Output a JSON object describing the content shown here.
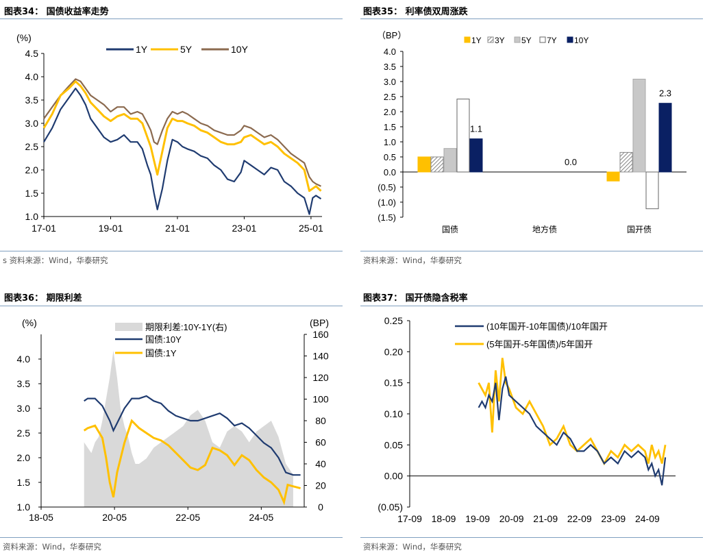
{
  "colors": {
    "navy": "#1f3b70",
    "gold": "#ffc000",
    "brown": "#8b6a4f",
    "grey": "#d9d9d9",
    "darknavy": "#0a2063",
    "silver": "#c8c8c8",
    "yellow2": "#ffc000"
  },
  "panels": {
    "p34": {
      "title": "图表34：  国债收益率走势",
      "source": "s 资料来源：Wind，华泰研究"
    },
    "p35": {
      "title": "图表35：  利率债双周涨跌",
      "source": "资料来源：Wind，华泰研究"
    },
    "p36": {
      "title": "图表36：  期限利差",
      "source": "资料来源：Wind，华泰研究"
    },
    "p37": {
      "title": "图表37：  国开债隐含税率",
      "source": "资料来源：Wind，华泰研究"
    }
  },
  "chart_data": [
    {
      "id": "yields",
      "type": "line",
      "ylabel": "(%)",
      "ylim": [
        1.0,
        4.5
      ],
      "yticks": [
        "1.0",
        "1.5",
        "2.0",
        "2.5",
        "3.0",
        "3.5",
        "4.0",
        "4.5"
      ],
      "xticks": [
        "17-01",
        "19-01",
        "21-01",
        "23-01",
        "25-01"
      ],
      "xrange": [
        2017.0,
        2025.33
      ],
      "legend": [
        "1Y",
        "5Y",
        "10Y"
      ],
      "series": [
        {
          "name": "1Y",
          "x": [
            2017.0,
            2017.25,
            2017.5,
            2017.75,
            2017.95,
            2018.1,
            2018.25,
            2018.4,
            2018.6,
            2018.8,
            2019.0,
            2019.2,
            2019.4,
            2019.6,
            2019.8,
            2019.95,
            2020.1,
            2020.2,
            2020.3,
            2020.4,
            2020.55,
            2020.7,
            2020.85,
            2021.0,
            2021.15,
            2021.3,
            2021.5,
            2021.7,
            2021.9,
            2022.1,
            2022.3,
            2022.5,
            2022.7,
            2022.9,
            2023.0,
            2023.2,
            2023.4,
            2023.6,
            2023.8,
            2024.0,
            2024.2,
            2024.4,
            2024.6,
            2024.8,
            2024.95,
            2025.05,
            2025.15,
            2025.3
          ],
          "values": [
            2.6,
            2.9,
            3.3,
            3.55,
            3.75,
            3.6,
            3.4,
            3.1,
            2.9,
            2.7,
            2.6,
            2.65,
            2.75,
            2.6,
            2.6,
            2.45,
            2.1,
            1.9,
            1.5,
            1.15,
            1.6,
            2.2,
            2.65,
            2.6,
            2.5,
            2.45,
            2.4,
            2.3,
            2.25,
            2.1,
            2.0,
            1.8,
            1.75,
            1.95,
            2.2,
            2.1,
            2.0,
            1.9,
            2.05,
            2.0,
            1.75,
            1.65,
            1.5,
            1.4,
            1.05,
            1.4,
            1.45,
            1.38
          ]
        },
        {
          "name": "5Y",
          "x": [
            2017.0,
            2017.25,
            2017.5,
            2017.75,
            2017.95,
            2018.1,
            2018.25,
            2018.4,
            2018.6,
            2018.8,
            2019.0,
            2019.2,
            2019.4,
            2019.6,
            2019.8,
            2019.95,
            2020.1,
            2020.2,
            2020.3,
            2020.4,
            2020.55,
            2020.7,
            2020.85,
            2021.0,
            2021.15,
            2021.3,
            2021.5,
            2021.7,
            2021.9,
            2022.1,
            2022.3,
            2022.5,
            2022.7,
            2022.9,
            2023.0,
            2023.2,
            2023.4,
            2023.6,
            2023.8,
            2024.0,
            2024.2,
            2024.4,
            2024.6,
            2024.8,
            2024.95,
            2025.05,
            2025.15,
            2025.3
          ],
          "values": [
            2.9,
            3.2,
            3.6,
            3.75,
            3.9,
            3.8,
            3.65,
            3.45,
            3.3,
            3.15,
            3.05,
            3.15,
            3.2,
            3.1,
            3.1,
            3.0,
            2.7,
            2.5,
            2.2,
            1.9,
            2.4,
            2.9,
            3.1,
            3.05,
            3.05,
            3.0,
            2.95,
            2.85,
            2.8,
            2.7,
            2.6,
            2.55,
            2.55,
            2.6,
            2.7,
            2.75,
            2.65,
            2.55,
            2.6,
            2.5,
            2.35,
            2.25,
            2.15,
            2.0,
            1.55,
            1.6,
            1.65,
            1.55
          ]
        },
        {
          "name": "10Y",
          "x": [
            2017.0,
            2017.25,
            2017.5,
            2017.75,
            2017.95,
            2018.1,
            2018.25,
            2018.4,
            2018.6,
            2018.8,
            2019.0,
            2019.2,
            2019.4,
            2019.6,
            2019.8,
            2019.95,
            2020.1,
            2020.2,
            2020.3,
            2020.4,
            2020.55,
            2020.7,
            2020.85,
            2021.0,
            2021.15,
            2021.3,
            2021.5,
            2021.7,
            2021.9,
            2022.1,
            2022.3,
            2022.5,
            2022.7,
            2022.9,
            2023.0,
            2023.2,
            2023.4,
            2023.6,
            2023.8,
            2024.0,
            2024.2,
            2024.4,
            2024.6,
            2024.8,
            2024.95,
            2025.05,
            2025.15,
            2025.3
          ],
          "values": [
            3.1,
            3.35,
            3.6,
            3.8,
            3.95,
            3.9,
            3.75,
            3.6,
            3.5,
            3.4,
            3.25,
            3.35,
            3.35,
            3.2,
            3.25,
            3.2,
            3.0,
            2.85,
            2.6,
            2.55,
            2.85,
            3.1,
            3.25,
            3.2,
            3.25,
            3.2,
            3.1,
            3.0,
            2.95,
            2.85,
            2.8,
            2.75,
            2.75,
            2.85,
            2.95,
            2.9,
            2.8,
            2.7,
            2.75,
            2.65,
            2.5,
            2.35,
            2.25,
            2.15,
            1.85,
            1.75,
            1.7,
            1.65
          ]
        }
      ]
    },
    {
      "id": "biweekly",
      "type": "bar",
      "ylabel": "（BP）",
      "ylim": [
        -1.5,
        4.0
      ],
      "yticks": [
        "(1.5)",
        "(1.0)",
        "(0.5)",
        "0.0",
        "0.5",
        "1.0",
        "1.5",
        "2.0",
        "2.5",
        "3.0",
        "3.5",
        "4.0"
      ],
      "categories": [
        "国债",
        "地方债",
        "国开债"
      ],
      "legend": [
        "1Y",
        "3Y",
        "5Y",
        "7Y",
        "10Y"
      ],
      "series": [
        {
          "name": "1Y",
          "values": [
            0.5,
            0.0,
            -0.3
          ]
        },
        {
          "name": "3Y",
          "values": [
            0.5,
            0.0,
            0.65
          ]
        },
        {
          "name": "5Y",
          "values": [
            0.78,
            0.0,
            3.08
          ]
        },
        {
          "name": "7Y",
          "values": [
            2.42,
            0.0,
            -1.22
          ]
        },
        {
          "name": "10Y",
          "values": [
            1.1,
            0.0,
            2.28
          ]
        }
      ],
      "data_labels": [
        "1.1",
        "0.0",
        "2.3"
      ]
    },
    {
      "id": "spread",
      "type": "line",
      "ylabel": "(%)",
      "ylabel_right": "(BP)",
      "ylim": [
        1.0,
        4.5
      ],
      "ylim_right": [
        0,
        160
      ],
      "yticks": [
        "1.0",
        "1.5",
        "2.0",
        "2.5",
        "3.0",
        "3.5",
        "4.0"
      ],
      "yticks_right": [
        "0",
        "20",
        "40",
        "60",
        "80",
        "100",
        "120",
        "140",
        "160"
      ],
      "xticks": [
        "18-05",
        "20-05",
        "22-05",
        "24-05"
      ],
      "xrange": [
        2018.33,
        2025.5
      ],
      "legend": [
        "期限利差:10Y-1Y(右)",
        "国债:10Y",
        "国债:1Y"
      ],
      "series": [
        {
          "name": "期限利差:10Y-1Y(右)",
          "x": [
            2019.5,
            2019.6,
            2019.7,
            2019.8,
            2019.9,
            2020.0,
            2020.1,
            2020.2,
            2020.3,
            2020.4,
            2020.5,
            2020.6,
            2020.7,
            2020.8,
            2020.9,
            2021.0,
            2021.2,
            2021.4,
            2021.6,
            2021.8,
            2022.0,
            2022.2,
            2022.4,
            2022.6,
            2022.8,
            2023.0,
            2023.2,
            2023.4,
            2023.6,
            2023.8,
            2024.0,
            2024.2,
            2024.4,
            2024.6,
            2024.8,
            2025.0,
            2025.2
          ],
          "values": [
            60,
            55,
            50,
            60,
            65,
            80,
            100,
            120,
            145,
            120,
            90,
            75,
            65,
            50,
            40,
            40,
            45,
            55,
            60,
            65,
            70,
            75,
            85,
            90,
            80,
            60,
            55,
            70,
            75,
            70,
            60,
            70,
            75,
            80,
            65,
            40,
            30
          ]
        },
        {
          "name": "国债:10Y",
          "x": [
            2019.5,
            2019.6,
            2019.8,
            2020.0,
            2020.2,
            2020.3,
            2020.4,
            2020.6,
            2020.8,
            2021.0,
            2021.2,
            2021.4,
            2021.6,
            2021.8,
            2022.0,
            2022.2,
            2022.4,
            2022.6,
            2022.8,
            2023.0,
            2023.2,
            2023.4,
            2023.6,
            2023.8,
            2024.0,
            2024.2,
            2024.4,
            2024.6,
            2024.8,
            2025.0,
            2025.2,
            2025.4
          ],
          "values": [
            3.15,
            3.2,
            3.2,
            3.05,
            2.75,
            2.55,
            2.7,
            3.0,
            3.2,
            3.2,
            3.25,
            3.15,
            3.1,
            2.95,
            2.85,
            2.8,
            2.75,
            2.75,
            2.8,
            2.85,
            2.9,
            2.8,
            2.65,
            2.7,
            2.6,
            2.45,
            2.3,
            2.2,
            2.0,
            1.7,
            1.65,
            1.65
          ]
        },
        {
          "name": "国债:1Y",
          "x": [
            2019.5,
            2019.6,
            2019.8,
            2020.0,
            2020.1,
            2020.2,
            2020.3,
            2020.4,
            2020.6,
            2020.8,
            2021.0,
            2021.2,
            2021.4,
            2021.6,
            2021.8,
            2022.0,
            2022.2,
            2022.4,
            2022.6,
            2022.8,
            2023.0,
            2023.2,
            2023.4,
            2023.6,
            2023.8,
            2024.0,
            2024.2,
            2024.4,
            2024.6,
            2024.8,
            2024.95,
            2025.05,
            2025.2,
            2025.4
          ],
          "values": [
            2.55,
            2.6,
            2.65,
            2.4,
            2.0,
            1.5,
            1.2,
            1.7,
            2.3,
            2.75,
            2.6,
            2.5,
            2.4,
            2.35,
            2.25,
            2.1,
            1.95,
            1.8,
            1.75,
            1.85,
            2.2,
            2.15,
            2.05,
            1.85,
            2.05,
            1.95,
            1.75,
            1.6,
            1.5,
            1.35,
            1.1,
            1.45,
            1.42,
            1.38
          ]
        }
      ]
    },
    {
      "id": "taxrate",
      "type": "line",
      "ylim": [
        -0.05,
        0.25
      ],
      "yticks": [
        "(0.05)",
        "0.00",
        "0.05",
        "0.10",
        "0.15",
        "0.20",
        "0.25"
      ],
      "xticks": [
        "17-09",
        "18-09",
        "19-09",
        "20-09",
        "21-09",
        "22-09",
        "23-09",
        "24-09"
      ],
      "xrange": [
        2017.67,
        2025.5
      ],
      "legend": [
        "(10年国开-10年国债)/10年国开",
        "(5年国开-5年国债)/5年国开"
      ],
      "series": [
        {
          "name": "(10年国开-10年国债)/10年国开",
          "x": [
            2019.7,
            2019.8,
            2019.9,
            2020.0,
            2020.1,
            2020.2,
            2020.3,
            2020.4,
            2020.5,
            2020.6,
            2020.8,
            2021.0,
            2021.2,
            2021.4,
            2021.6,
            2021.8,
            2022.0,
            2022.2,
            2022.4,
            2022.6,
            2022.8,
            2023.0,
            2023.2,
            2023.4,
            2023.6,
            2023.8,
            2024.0,
            2024.2,
            2024.4,
            2024.6,
            2024.7,
            2024.8,
            2024.9,
            2025.0,
            2025.1,
            2025.2
          ],
          "values": [
            0.11,
            0.12,
            0.11,
            0.13,
            0.12,
            0.15,
            0.09,
            0.14,
            0.16,
            0.13,
            0.12,
            0.11,
            0.1,
            0.08,
            0.07,
            0.06,
            0.05,
            0.07,
            0.06,
            0.04,
            0.04,
            0.05,
            0.04,
            0.02,
            0.03,
            0.02,
            0.04,
            0.03,
            0.04,
            0.03,
            0.01,
            0.02,
            0.0,
            0.01,
            -0.015,
            0.03
          ]
        },
        {
          "name": "(5年国开-5年国债)/5年国开",
          "x": [
            2019.7,
            2019.8,
            2019.9,
            2020.0,
            2020.1,
            2020.2,
            2020.3,
            2020.4,
            2020.5,
            2020.6,
            2020.8,
            2021.0,
            2021.2,
            2021.4,
            2021.6,
            2021.8,
            2022.0,
            2022.2,
            2022.4,
            2022.6,
            2022.8,
            2023.0,
            2023.2,
            2023.4,
            2023.6,
            2023.8,
            2024.0,
            2024.2,
            2024.4,
            2024.6,
            2024.7,
            2024.8,
            2024.9,
            2025.0,
            2025.1,
            2025.2
          ],
          "values": [
            0.15,
            0.14,
            0.13,
            0.15,
            0.07,
            0.17,
            0.12,
            0.19,
            0.15,
            0.14,
            0.11,
            0.1,
            0.12,
            0.1,
            0.08,
            0.05,
            0.06,
            0.08,
            0.05,
            0.04,
            0.05,
            0.06,
            0.04,
            0.02,
            0.04,
            0.03,
            0.05,
            0.04,
            0.05,
            0.04,
            0.02,
            0.05,
            0.03,
            0.04,
            0.02,
            0.05
          ]
        }
      ]
    }
  ]
}
